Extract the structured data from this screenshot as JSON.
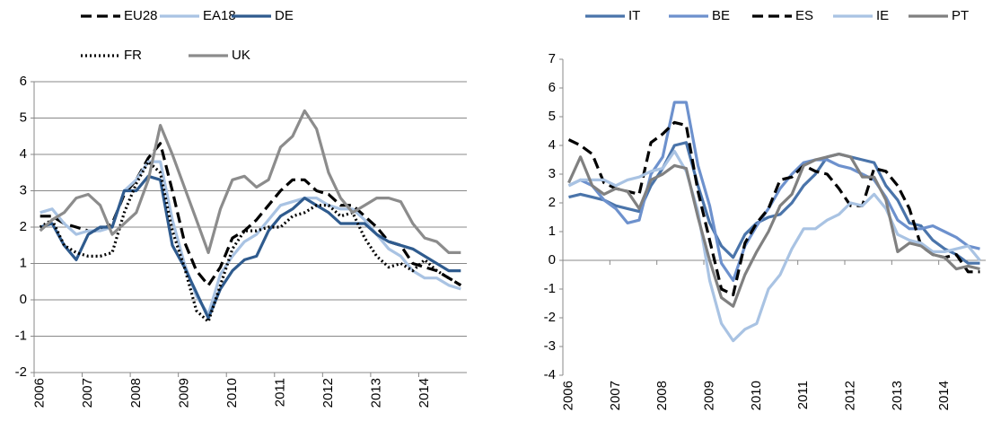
{
  "chart_data": [
    {
      "type": "line",
      "categories": [
        "2006",
        null,
        null,
        null,
        "2007",
        null,
        null,
        null,
        "2008",
        null,
        null,
        null,
        "2009",
        null,
        null,
        null,
        "2010",
        null,
        null,
        null,
        "2011",
        null,
        null,
        null,
        "2012",
        null,
        null,
        null,
        "2013",
        null,
        null,
        null,
        "2014",
        null,
        null,
        null
      ],
      "ylim": [
        -2,
        6
      ],
      "yticks": [
        -2,
        -1,
        0,
        1,
        2,
        3,
        4,
        5,
        6
      ],
      "grid": true,
      "series": [
        {
          "name": "EU28",
          "color": "#000000",
          "style": "dashed",
          "values": [
            2.3,
            2.3,
            2.1,
            2.0,
            1.9,
            1.9,
            2.1,
            2.9,
            3.3,
            3.9,
            4.3,
            3.0,
            1.6,
            0.8,
            0.4,
            0.9,
            1.7,
            1.9,
            2.2,
            2.6,
            3.0,
            3.3,
            3.3,
            3.0,
            2.9,
            2.6,
            2.6,
            2.3,
            2.0,
            1.6,
            1.5,
            1.0,
            0.9,
            0.8,
            0.6,
            0.4
          ]
        },
        {
          "name": "EA18",
          "color": "#a9c3e3",
          "style": "solid",
          "values": [
            2.4,
            2.5,
            2.1,
            1.8,
            1.9,
            1.9,
            2.0,
            3.0,
            3.3,
            3.8,
            3.8,
            2.2,
            1.0,
            0.1,
            -0.4,
            0.7,
            1.2,
            1.6,
            1.8,
            2.2,
            2.6,
            2.7,
            2.8,
            2.8,
            2.6,
            2.5,
            2.5,
            2.2,
            1.8,
            1.4,
            1.2,
            0.8,
            0.6,
            0.6,
            0.4,
            0.3
          ]
        },
        {
          "name": "DE",
          "color": "#2f5b8e",
          "style": "solid",
          "values": [
            2.0,
            2.1,
            1.5,
            1.1,
            1.8,
            2.0,
            2.0,
            3.0,
            3.0,
            3.4,
            3.3,
            1.5,
            0.9,
            0.2,
            -0.5,
            0.3,
            0.8,
            1.1,
            1.2,
            1.9,
            2.3,
            2.5,
            2.8,
            2.6,
            2.4,
            2.1,
            2.1,
            2.1,
            1.8,
            1.6,
            1.5,
            1.4,
            1.2,
            1.0,
            0.8,
            0.8
          ]
        },
        {
          "name": "FR",
          "color": "#000000",
          "style": "dotted",
          "values": [
            2.0,
            2.2,
            1.5,
            1.3,
            1.2,
            1.2,
            1.3,
            2.4,
            3.2,
            3.8,
            3.5,
            1.9,
            0.9,
            -0.3,
            -0.6,
            0.4,
            1.4,
            1.9,
            1.9,
            2.0,
            2.0,
            2.3,
            2.4,
            2.6,
            2.6,
            2.3,
            2.4,
            1.7,
            1.2,
            0.9,
            1.0,
            0.8,
            1.1,
            0.8,
            0.6,
            0.4
          ]
        },
        {
          "name": "UK",
          "color": "#8c8c8c",
          "style": "solid",
          "values": [
            1.9,
            2.2,
            2.4,
            2.8,
            2.9,
            2.6,
            1.8,
            2.1,
            2.4,
            3.3,
            4.8,
            4.0,
            3.1,
            2.2,
            1.3,
            2.5,
            3.3,
            3.4,
            3.1,
            3.3,
            4.2,
            4.5,
            5.2,
            4.7,
            3.5,
            2.8,
            2.4,
            2.6,
            2.8,
            2.8,
            2.7,
            2.1,
            1.7,
            1.6,
            1.3,
            1.3
          ]
        }
      ]
    },
    {
      "type": "line",
      "categories": [
        "2006",
        null,
        null,
        null,
        "2007",
        null,
        null,
        null,
        "2008",
        null,
        null,
        null,
        "2009",
        null,
        null,
        null,
        "2010",
        null,
        null,
        null,
        "2011",
        null,
        null,
        null,
        "2012",
        null,
        null,
        null,
        "2013",
        null,
        null,
        null,
        "2014",
        null,
        null,
        null
      ],
      "ylim": [
        -4,
        7
      ],
      "yticks": [
        -4,
        -3,
        -2,
        -1,
        0,
        1,
        2,
        3,
        4,
        5,
        6,
        7
      ],
      "grid": false,
      "series": [
        {
          "name": "IT",
          "color": "#4a74aa",
          "style": "solid",
          "values": [
            2.2,
            2.3,
            2.2,
            2.1,
            1.9,
            1.8,
            1.7,
            2.6,
            3.2,
            4.0,
            4.1,
            2.6,
            1.3,
            0.5,
            0.1,
            0.9,
            1.3,
            1.5,
            1.6,
            2.0,
            2.6,
            3.0,
            3.6,
            3.7,
            3.6,
            3.5,
            3.4,
            2.6,
            2.1,
            1.3,
            1.2,
            0.7,
            0.4,
            0.2,
            -0.1,
            -0.1
          ]
        },
        {
          "name": "BE",
          "color": "#6d91cd",
          "style": "solid",
          "values": [
            2.6,
            2.8,
            2.6,
            2.1,
            1.8,
            1.3,
            1.4,
            3.0,
            3.6,
            5.5,
            5.5,
            3.3,
            1.9,
            -0.1,
            -0.7,
            0.5,
            1.2,
            1.8,
            2.5,
            3.0,
            3.4,
            3.5,
            3.5,
            3.3,
            3.2,
            3.0,
            2.8,
            2.2,
            1.4,
            1.1,
            1.1,
            1.2,
            1.0,
            0.8,
            0.5,
            0.4
          ]
        },
        {
          "name": "ES",
          "color": "#000000",
          "style": "dashed",
          "values": [
            4.2,
            4.0,
            3.7,
            2.7,
            2.5,
            2.4,
            2.3,
            4.1,
            4.4,
            4.8,
            4.7,
            2.4,
            0.7,
            -1.0,
            -1.2,
            0.6,
            1.3,
            1.8,
            2.8,
            2.9,
            3.3,
            3.1,
            3.0,
            2.5,
            1.9,
            1.9,
            3.2,
            3.1,
            2.6,
            1.8,
            0.5,
            0.2,
            0.1,
            0.2,
            -0.4,
            -0.4
          ]
        },
        {
          "name": "IE",
          "color": "#a9c3e3",
          "style": "solid",
          "values": [
            2.6,
            2.8,
            2.8,
            2.8,
            2.6,
            2.8,
            2.9,
            3.1,
            3.2,
            3.8,
            3.1,
            1.7,
            -0.7,
            -2.2,
            -2.8,
            -2.4,
            -2.2,
            -1.0,
            -0.5,
            0.4,
            1.1,
            1.1,
            1.4,
            1.6,
            2.0,
            1.9,
            2.3,
            1.8,
            0.9,
            0.7,
            0.6,
            0.3,
            0.3,
            0.4,
            0.5,
            0.0
          ]
        },
        {
          "name": "PT",
          "color": "#808080",
          "style": "solid",
          "values": [
            2.7,
            3.6,
            2.6,
            2.3,
            2.5,
            2.4,
            1.8,
            2.8,
            3.0,
            3.3,
            3.2,
            1.5,
            0.0,
            -1.3,
            -1.6,
            -0.5,
            0.3,
            1.0,
            1.9,
            2.3,
            3.3,
            3.5,
            3.6,
            3.7,
            3.6,
            2.9,
            2.9,
            2.1,
            0.3,
            0.6,
            0.5,
            0.2,
            0.1,
            -0.3,
            -0.2,
            -0.3
          ]
        }
      ]
    }
  ]
}
